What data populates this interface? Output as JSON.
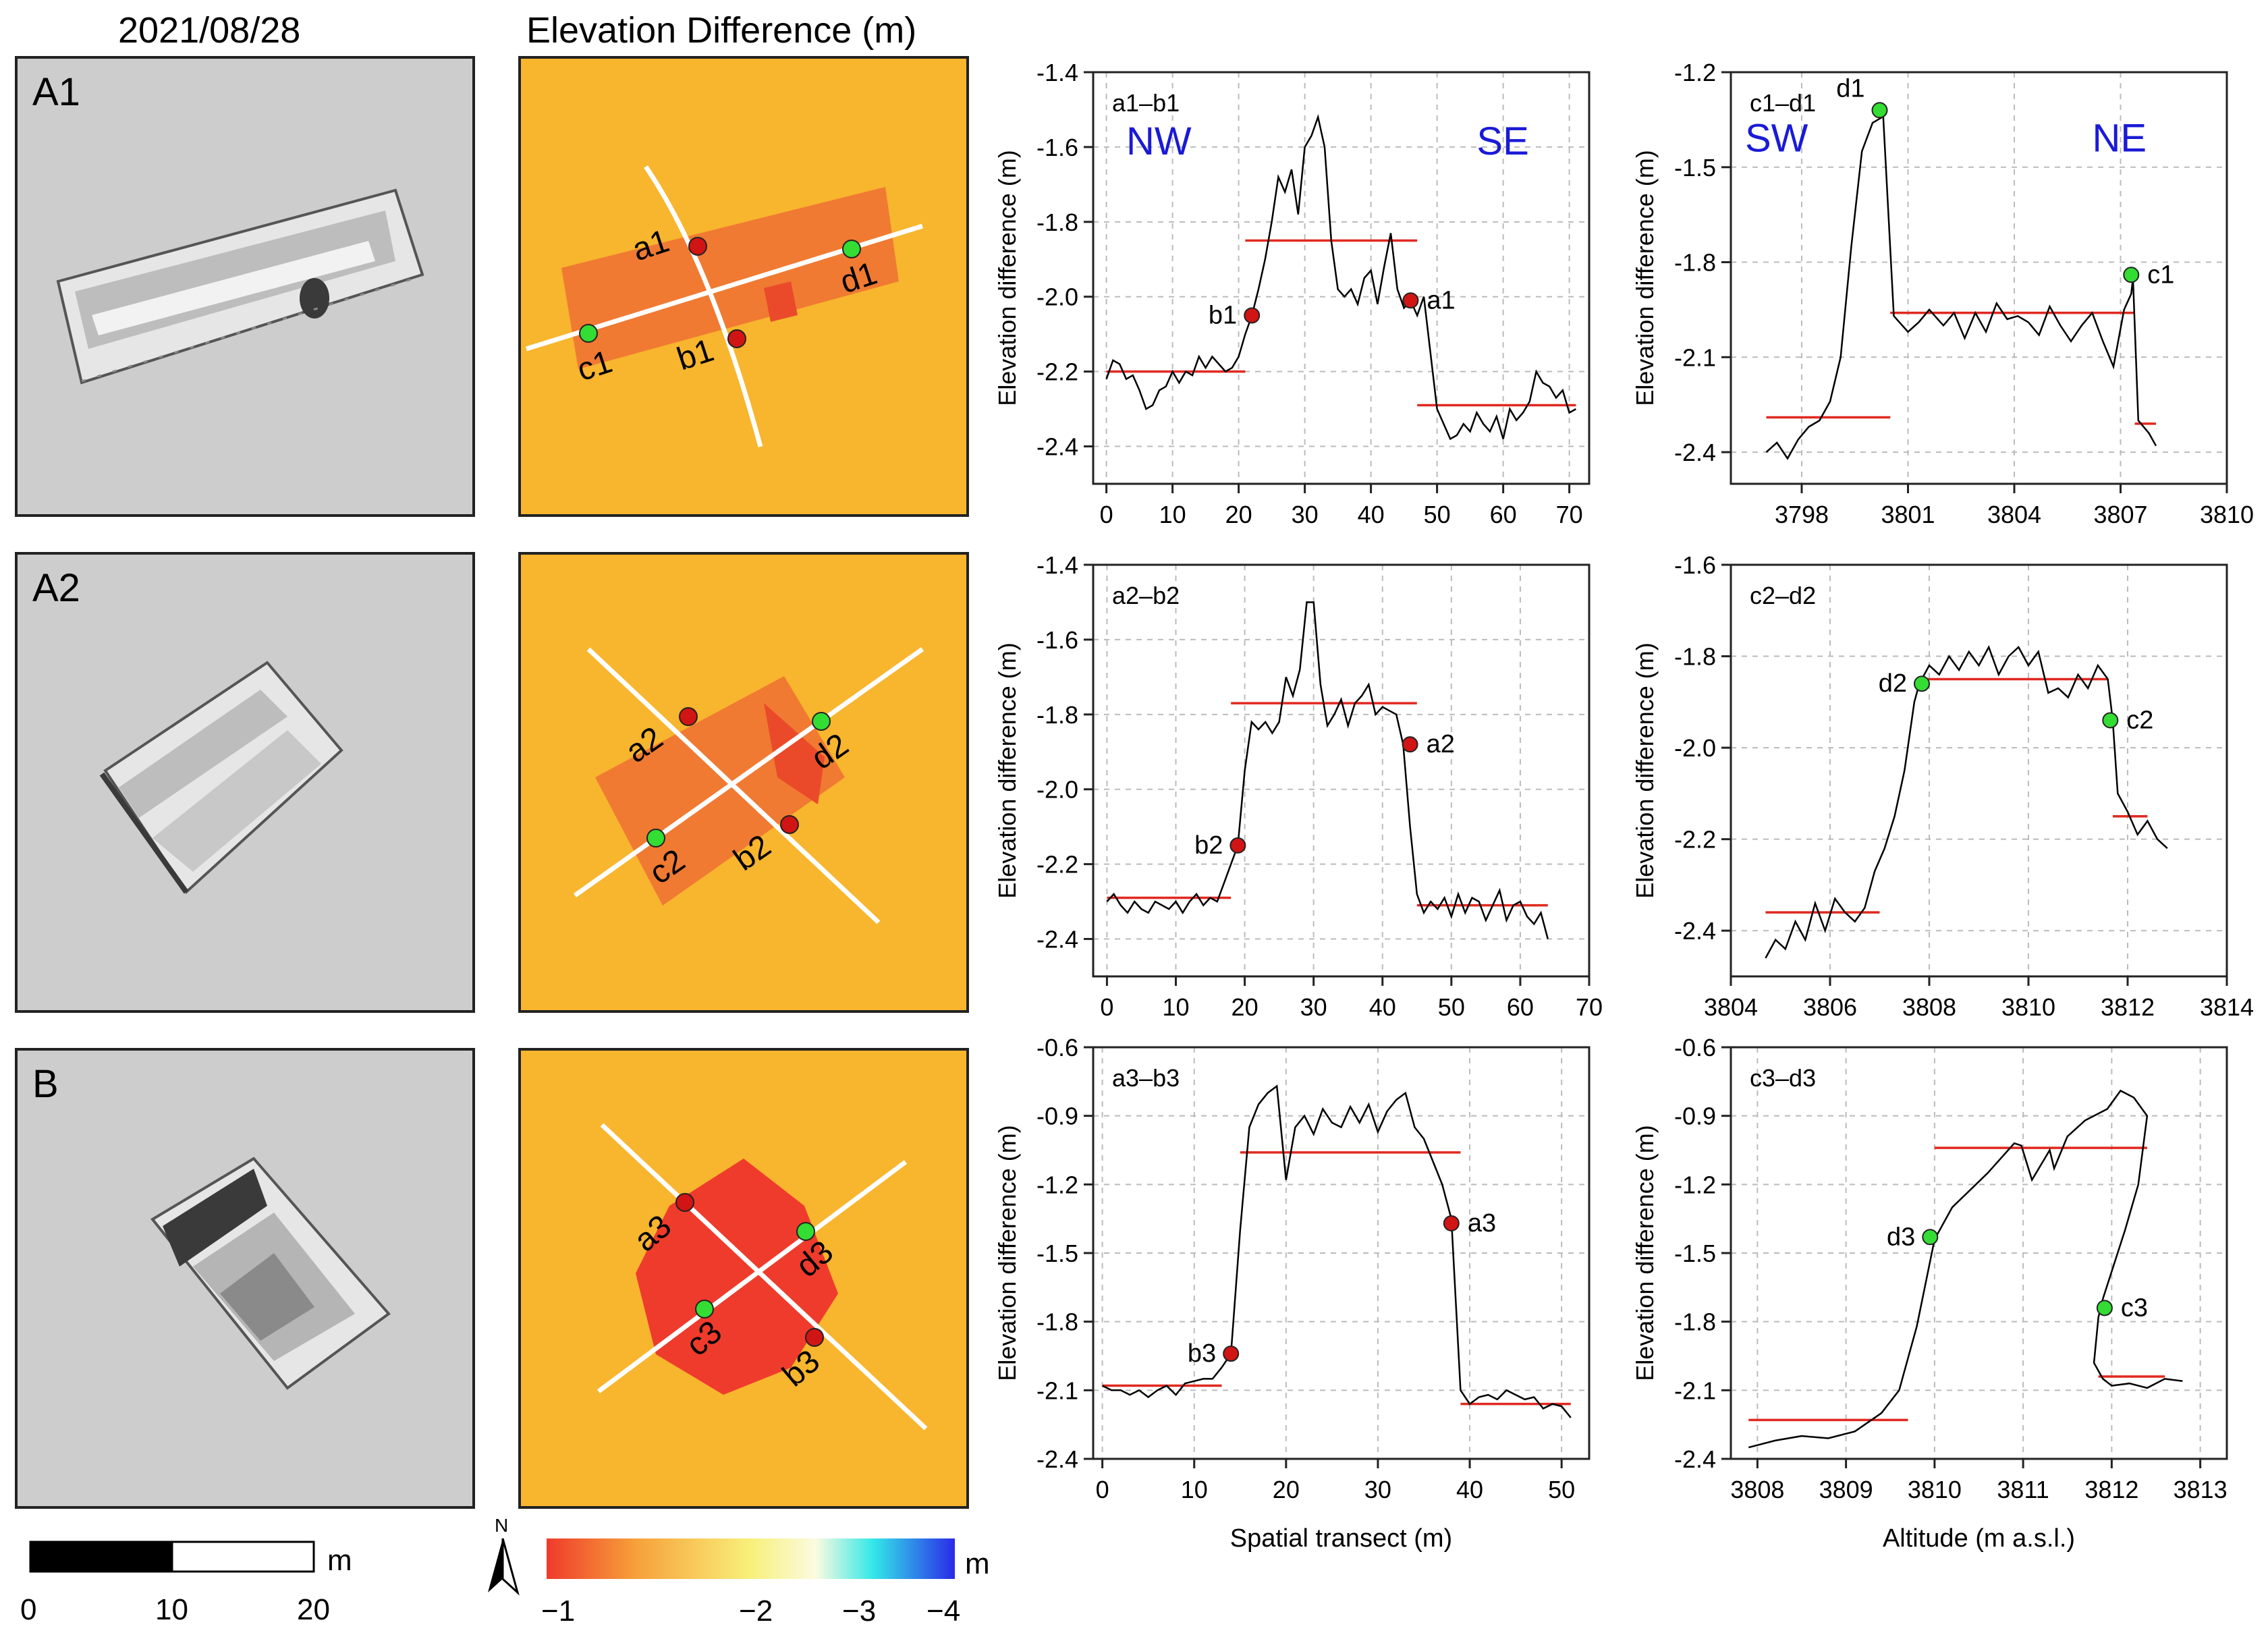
{
  "headers": {
    "date": "2021/08/28",
    "diff": "Elevation Difference (m)"
  },
  "rows": [
    {
      "label": "A1",
      "profile_a": "a1",
      "profile_b": "b1",
      "profile_c": "c1",
      "profile_d": "d1"
    },
    {
      "label": "A2",
      "profile_a": "a2",
      "profile_b": "b2",
      "profile_c": "c2",
      "profile_d": "d2"
    },
    {
      "label": "B",
      "profile_a": "a3",
      "profile_b": "b3",
      "profile_c": "c3",
      "profile_d": "d3"
    }
  ],
  "directions": {
    "nw": "NW",
    "se": "SE",
    "sw": "SW",
    "ne": "NE"
  },
  "scalebar": {
    "unit": "m",
    "ticks": [
      "0",
      "10",
      "20"
    ]
  },
  "north": "N",
  "colorbar": {
    "unit": "m",
    "ticks": [
      "−1",
      "−2",
      "−3",
      "−4"
    ]
  },
  "colors": {
    "profile": "#000000",
    "mean_line": "#e0291f",
    "point_ab": "#d11414",
    "point_cd": "#33dd33",
    "direction": "#1a1ad6",
    "diff_background": "#f8b52e",
    "diff_anomaly": "#ef3b2c"
  },
  "bottom_labels": {
    "left": "Spatial transect (m)",
    "right": "Altitude (m a.s.l.)"
  },
  "chart_data": [
    {
      "type": "line",
      "title": "a1–b1",
      "xlabel": "",
      "ylabel": "Elevation difference (m)",
      "xlim": [
        -2,
        73
      ],
      "ylim": [
        -2.5,
        -1.4
      ],
      "xticks": [
        0,
        10,
        20,
        30,
        40,
        50,
        60,
        70
      ],
      "xtick_labels": [
        "0",
        "10",
        "20",
        "30",
        "40",
        "50",
        "60",
        "70"
      ],
      "yticks": [
        -1.4,
        -1.6,
        -1.8,
        -2.0,
        -2.2,
        -2.4
      ],
      "ytick_labels": [
        "-1.4",
        "-1.6",
        "-1.8",
        "-2.0",
        "-2.2",
        "-2.4"
      ],
      "x": [
        0,
        1,
        2,
        3,
        4,
        5,
        6,
        7,
        8,
        9,
        10,
        11,
        12,
        13,
        14,
        15,
        16,
        17,
        18,
        19,
        20,
        21,
        22,
        23,
        24,
        25,
        26,
        27,
        28,
        29,
        30,
        31,
        32,
        33,
        34,
        35,
        36,
        37,
        38,
        39,
        40,
        41,
        42,
        43,
        44,
        45,
        46,
        47,
        48,
        49,
        50,
        51,
        52,
        53,
        54,
        55,
        56,
        57,
        58,
        59,
        60,
        61,
        62,
        63,
        64,
        65,
        66,
        67,
        68,
        69,
        70,
        71
      ],
      "y": [
        -2.22,
        -2.17,
        -2.18,
        -2.22,
        -2.21,
        -2.25,
        -2.3,
        -2.29,
        -2.25,
        -2.24,
        -2.2,
        -2.23,
        -2.2,
        -2.21,
        -2.16,
        -2.19,
        -2.16,
        -2.18,
        -2.2,
        -2.19,
        -2.16,
        -2.1,
        -2.05,
        -1.98,
        -1.9,
        -1.8,
        -1.68,
        -1.72,
        -1.66,
        -1.78,
        -1.6,
        -1.57,
        -1.52,
        -1.6,
        -1.85,
        -1.98,
        -2.0,
        -1.98,
        -2.02,
        -1.95,
        -1.93,
        -2.02,
        -1.92,
        -1.83,
        -1.98,
        -2.03,
        -2.01,
        -2.05,
        -2.0,
        -2.15,
        -2.3,
        -2.34,
        -2.38,
        -2.37,
        -2.34,
        -2.36,
        -2.31,
        -2.34,
        -2.36,
        -2.32,
        -2.38,
        -2.3,
        -2.33,
        -2.31,
        -2.28,
        -2.2,
        -2.23,
        -2.24,
        -2.27,
        -2.25,
        -2.31,
        -2.3
      ],
      "mean_segments": [
        {
          "x": [
            0,
            21
          ],
          "y": -2.2
        },
        {
          "x": [
            21,
            47
          ],
          "y": -1.85
        },
        {
          "x": [
            47,
            71
          ],
          "y": -2.29
        }
      ],
      "points": [
        {
          "label": "b1",
          "x": 22,
          "y": -2.05,
          "kind": "ab"
        },
        {
          "label": "a1",
          "x": 46,
          "y": -2.01,
          "kind": "ab"
        }
      ],
      "annotations": [
        {
          "text": "NW",
          "x": 3,
          "y": -1.62
        },
        {
          "text": "SE",
          "x": 56,
          "y": -1.62
        }
      ]
    },
    {
      "type": "line",
      "title": "c1–d1",
      "xlabel": "",
      "ylabel": "Elevation difference (m)",
      "xlim": [
        3796,
        3810
      ],
      "ylim": [
        -2.5,
        -1.2
      ],
      "xticks": [
        3798,
        3801,
        3804,
        3807,
        3810
      ],
      "xtick_labels": [
        "3798",
        "3801",
        "3804",
        "3807",
        "3810"
      ],
      "yticks": [
        -1.2,
        -1.5,
        -1.8,
        -2.1,
        -2.4
      ],
      "ytick_labels": [
        "-1.2",
        "-1.5",
        "-1.8",
        "-2.1",
        "-2.4"
      ],
      "x": [
        3797.0,
        3797.3,
        3797.6,
        3797.9,
        3798.2,
        3798.5,
        3798.8,
        3799.1,
        3799.4,
        3799.7,
        3800.0,
        3800.3,
        3800.6,
        3801.0,
        3801.3,
        3801.6,
        3802.0,
        3802.3,
        3802.6,
        3802.9,
        3803.2,
        3803.5,
        3803.8,
        3804.1,
        3804.4,
        3804.7,
        3805.0,
        3805.3,
        3805.6,
        3805.9,
        3806.2,
        3806.5,
        3806.8,
        3807.1,
        3807.3,
        3807.35,
        3807.5,
        3807.8,
        3808.0
      ],
      "y": [
        -2.4,
        -2.37,
        -2.42,
        -2.36,
        -2.32,
        -2.3,
        -2.24,
        -2.1,
        -1.75,
        -1.45,
        -1.36,
        -1.34,
        -1.97,
        -2.02,
        -1.99,
        -1.95,
        -2.0,
        -1.96,
        -2.04,
        -1.96,
        -2.02,
        -1.93,
        -1.98,
        -1.97,
        -1.99,
        -2.03,
        -1.94,
        -2.0,
        -2.05,
        -2.0,
        -1.96,
        -2.05,
        -2.13,
        -1.95,
        -1.9,
        -1.85,
        -2.3,
        -2.34,
        -2.38
      ],
      "mean_segments": [
        {
          "x": [
            3797,
            3800.5
          ],
          "y": -2.29
        },
        {
          "x": [
            3800.5,
            3807.4
          ],
          "y": -1.96
        },
        {
          "x": [
            3807.4,
            3808
          ],
          "y": -2.31
        }
      ],
      "points": [
        {
          "label": "d1",
          "x": 3800.2,
          "y": -1.32,
          "kind": "cd"
        },
        {
          "label": "c1",
          "x": 3807.3,
          "y": -1.84,
          "kind": "cd"
        }
      ],
      "annotations": [
        {
          "text": "SW",
          "x": 3796.4,
          "y": -1.45
        },
        {
          "text": "NE",
          "x": 3806.2,
          "y": -1.45
        }
      ]
    },
    {
      "type": "line",
      "title": "a2–b2",
      "xlabel": "",
      "ylabel": "Elevation difference (m)",
      "xlim": [
        -2,
        70
      ],
      "ylim": [
        -2.5,
        -1.4
      ],
      "xticks": [
        0,
        10,
        20,
        30,
        40,
        50,
        60,
        70
      ],
      "xtick_labels": [
        "0",
        "10",
        "20",
        "30",
        "40",
        "50",
        "60",
        "70"
      ],
      "yticks": [
        -1.4,
        -1.6,
        -1.8,
        -2.0,
        -2.2,
        -2.4
      ],
      "ytick_labels": [
        "-1.4",
        "-1.6",
        "-1.8",
        "-2.0",
        "-2.2",
        "-2.4"
      ],
      "x": [
        0,
        1,
        2,
        3,
        4,
        5,
        6,
        7,
        8,
        9,
        10,
        11,
        12,
        13,
        14,
        15,
        16,
        17,
        18,
        19,
        20,
        21,
        22,
        23,
        24,
        25,
        26,
        27,
        28,
        29,
        30,
        31,
        32,
        33,
        34,
        35,
        36,
        37,
        38,
        39,
        40,
        41,
        42,
        43,
        44,
        45,
        46,
        47,
        48,
        49,
        50,
        51,
        52,
        53,
        54,
        55,
        56,
        57,
        58,
        59,
        60,
        61,
        62,
        63,
        64
      ],
      "y": [
        -2.3,
        -2.28,
        -2.31,
        -2.33,
        -2.3,
        -2.32,
        -2.33,
        -2.3,
        -2.31,
        -2.32,
        -2.3,
        -2.33,
        -2.3,
        -2.28,
        -2.31,
        -2.29,
        -2.3,
        -2.25,
        -2.2,
        -2.15,
        -1.95,
        -1.82,
        -1.84,
        -1.82,
        -1.85,
        -1.82,
        -1.7,
        -1.75,
        -1.68,
        -1.5,
        -1.5,
        -1.72,
        -1.83,
        -1.8,
        -1.76,
        -1.83,
        -1.77,
        -1.75,
        -1.72,
        -1.8,
        -1.78,
        -1.79,
        -1.8,
        -1.88,
        -2.1,
        -2.28,
        -2.33,
        -2.3,
        -2.32,
        -2.29,
        -2.34,
        -2.28,
        -2.33,
        -2.29,
        -2.3,
        -2.35,
        -2.31,
        -2.27,
        -2.35,
        -2.31,
        -2.3,
        -2.34,
        -2.36,
        -2.33,
        -2.4
      ],
      "mean_segments": [
        {
          "x": [
            0,
            18
          ],
          "y": -2.29
        },
        {
          "x": [
            18,
            45
          ],
          "y": -1.77
        },
        {
          "x": [
            45,
            64
          ],
          "y": -2.31
        }
      ],
      "points": [
        {
          "label": "b2",
          "x": 19,
          "y": -2.15,
          "kind": "ab"
        },
        {
          "label": "a2",
          "x": 44,
          "y": -1.88,
          "kind": "ab"
        }
      ],
      "annotations": []
    },
    {
      "type": "line",
      "title": "c2–d2",
      "xlabel": "",
      "ylabel": "Elevation difference (m)",
      "xlim": [
        3804,
        3814
      ],
      "ylim": [
        -2.5,
        -1.6
      ],
      "xticks": [
        3804,
        3806,
        3808,
        3810,
        3812,
        3814
      ],
      "xtick_labels": [
        "3804",
        "3806",
        "3808",
        "3810",
        "3812",
        "3814"
      ],
      "yticks": [
        -1.6,
        -1.8,
        -2.0,
        -2.2,
        -2.4
      ],
      "ytick_labels": [
        "-1.6",
        "-1.8",
        "-2.0",
        "-2.2",
        "-2.4"
      ],
      "x": [
        3804.7,
        3804.9,
        3805.1,
        3805.3,
        3805.5,
        3805.7,
        3805.9,
        3806.1,
        3806.3,
        3806.5,
        3806.7,
        3806.9,
        3807.1,
        3807.3,
        3807.5,
        3807.7,
        3807.8,
        3808.0,
        3808.2,
        3808.4,
        3808.6,
        3808.8,
        3809.0,
        3809.2,
        3809.4,
        3809.6,
        3809.8,
        3810.0,
        3810.2,
        3810.4,
        3810.6,
        3810.8,
        3811.0,
        3811.2,
        3811.4,
        3811.6,
        3811.7,
        3811.8,
        3812.0,
        3812.2,
        3812.4,
        3812.6,
        3812.8
      ],
      "y": [
        -2.46,
        -2.42,
        -2.44,
        -2.38,
        -2.42,
        -2.34,
        -2.4,
        -2.33,
        -2.36,
        -2.38,
        -2.35,
        -2.27,
        -2.22,
        -2.15,
        -2.05,
        -1.9,
        -1.86,
        -1.82,
        -1.84,
        -1.8,
        -1.83,
        -1.79,
        -1.82,
        -1.78,
        -1.84,
        -1.8,
        -1.78,
        -1.82,
        -1.79,
        -1.88,
        -1.87,
        -1.89,
        -1.84,
        -1.87,
        -1.82,
        -1.85,
        -1.94,
        -2.1,
        -2.14,
        -2.19,
        -2.16,
        -2.2,
        -2.22
      ],
      "mean_segments": [
        {
          "x": [
            3804.7,
            3807.0
          ],
          "y": -2.36
        },
        {
          "x": [
            3807.8,
            3811.6
          ],
          "y": -1.85
        },
        {
          "x": [
            3811.7,
            3812.4
          ],
          "y": -2.15
        }
      ],
      "points": [
        {
          "label": "d2",
          "x": 3807.85,
          "y": -1.86,
          "kind": "cd"
        },
        {
          "label": "c2",
          "x": 3811.65,
          "y": -1.94,
          "kind": "cd"
        }
      ],
      "annotations": []
    },
    {
      "type": "line",
      "title": "a3–b3",
      "xlabel": "Spatial transect (m)",
      "ylabel": "Elevation difference (m)",
      "xlim": [
        -1,
        53
      ],
      "ylim": [
        -2.4,
        -0.6
      ],
      "xticks": [
        0,
        10,
        20,
        30,
        40,
        50
      ],
      "xtick_labels": [
        "0",
        "10",
        "20",
        "30",
        "40",
        "50"
      ],
      "yticks": [
        -0.6,
        -0.9,
        -1.2,
        -1.5,
        -1.8,
        -2.1,
        -2.4
      ],
      "ytick_labels": [
        "-0.6",
        "-0.9",
        "-1.2",
        "-1.5",
        "-1.8",
        "-2.1",
        "-2.4"
      ],
      "x": [
        0,
        1,
        2,
        3,
        4,
        5,
        6,
        7,
        8,
        9,
        10,
        11,
        12,
        13,
        14,
        15,
        16,
        17,
        18,
        19,
        20,
        21,
        22,
        23,
        24,
        25,
        26,
        27,
        28,
        29,
        30,
        31,
        32,
        33,
        34,
        35,
        36,
        37,
        38,
        39,
        40,
        41,
        42,
        43,
        44,
        45,
        46,
        47,
        48,
        49,
        50,
        51
      ],
      "y": [
        -2.08,
        -2.1,
        -2.1,
        -2.12,
        -2.1,
        -2.13,
        -2.1,
        -2.08,
        -2.12,
        -2.07,
        -2.06,
        -2.05,
        -2.05,
        -2.0,
        -1.94,
        -1.4,
        -0.95,
        -0.85,
        -0.8,
        -0.77,
        -1.18,
        -0.95,
        -0.9,
        -0.98,
        -0.87,
        -0.93,
        -0.95,
        -0.86,
        -0.93,
        -0.85,
        -0.97,
        -0.88,
        -0.83,
        -0.8,
        -0.95,
        -1.0,
        -1.1,
        -1.2,
        -1.35,
        -2.1,
        -2.16,
        -2.13,
        -2.12,
        -2.14,
        -2.1,
        -2.12,
        -2.14,
        -2.13,
        -2.18,
        -2.16,
        -2.17,
        -2.22
      ],
      "mean_segments": [
        {
          "x": [
            0,
            13
          ],
          "y": -2.08
        },
        {
          "x": [
            15,
            39
          ],
          "y": -1.06
        },
        {
          "x": [
            39,
            51
          ],
          "y": -2.16
        }
      ],
      "points": [
        {
          "label": "b3",
          "x": 14,
          "y": -1.94,
          "kind": "ab"
        },
        {
          "label": "a3",
          "x": 38,
          "y": -1.37,
          "kind": "ab"
        }
      ],
      "annotations": []
    },
    {
      "type": "line",
      "title": "c3–d3",
      "xlabel": "Altitude (m a.s.l.)",
      "ylabel": "Elevation difference (m)",
      "xlim": [
        3807.7,
        3813.3
      ],
      "ylim": [
        -2.4,
        -0.6
      ],
      "xticks": [
        3808,
        3809,
        3810,
        3811,
        3812,
        3813
      ],
      "xtick_labels": [
        "3808",
        "3809",
        "3810",
        "3811",
        "3812",
        "3813"
      ],
      "yticks": [
        -0.6,
        -0.9,
        -1.2,
        -1.5,
        -1.8,
        -2.1,
        -2.4
      ],
      "ytick_labels": [
        "-0.6",
        "-0.9",
        "-1.2",
        "-1.5",
        "-1.8",
        "-2.1",
        "-2.4"
      ],
      "x": [
        3807.9,
        3808.2,
        3808.5,
        3808.8,
        3809.1,
        3809.4,
        3809.6,
        3809.8,
        3810.0,
        3810.2,
        3810.6,
        3810.9,
        3810.98,
        3811.1,
        3811.3,
        3811.35,
        3811.5,
        3811.7,
        3811.95,
        3812.1,
        3812.25,
        3812.4,
        3812.3,
        3812.15,
        3811.9,
        3811.85,
        3811.8,
        3811.9,
        3812.0,
        3812.2,
        3812.4,
        3812.6,
        3812.8
      ],
      "y": [
        -2.35,
        -2.32,
        -2.3,
        -2.31,
        -2.28,
        -2.2,
        -2.1,
        -1.82,
        -1.44,
        -1.3,
        -1.15,
        -1.02,
        -1.03,
        -1.18,
        -1.05,
        -1.13,
        -0.99,
        -0.92,
        -0.87,
        -0.79,
        -0.82,
        -0.9,
        -1.2,
        -1.4,
        -1.7,
        -1.78,
        -1.98,
        -2.05,
        -2.08,
        -2.07,
        -2.09,
        -2.05,
        -2.06
      ],
      "mean_segments": [
        {
          "x": [
            3807.9,
            3809.7
          ],
          "y": -2.23
        },
        {
          "x": [
            3810.0,
            3812.4
          ],
          "y": -1.04
        },
        {
          "x": [
            3811.85,
            3812.6
          ],
          "y": -2.04
        }
      ],
      "points": [
        {
          "label": "d3",
          "x": 3809.95,
          "y": -1.43,
          "kind": "cd"
        },
        {
          "label": "c3",
          "x": 3811.92,
          "y": -1.74,
          "kind": "cd"
        }
      ],
      "annotations": []
    }
  ]
}
